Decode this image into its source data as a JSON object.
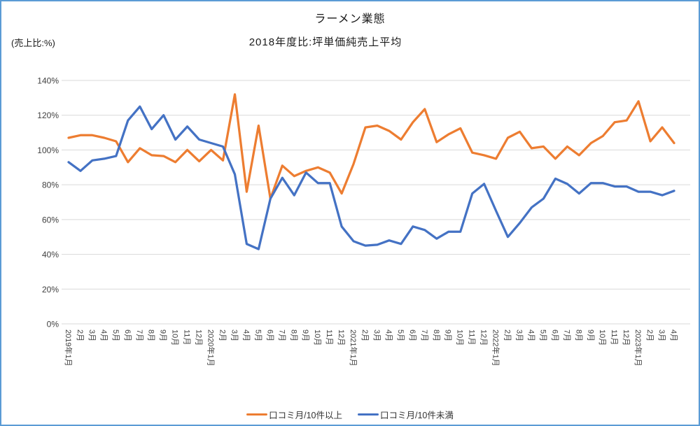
{
  "frame": {
    "border_color": "#5B9BD5",
    "background": "#FFFFFF"
  },
  "chart_data": {
    "type": "line",
    "title": "ラーメン業態",
    "subtitle": "2018年度比:坪単価純売上平均",
    "y_unit_label": "(売上比:%)",
    "xlabel": "",
    "ylabel": "売上比",
    "ylim": [
      0,
      140
    ],
    "grid": true,
    "legend_position": "bottom",
    "y_ticks": [
      "140%",
      "120%",
      "100%",
      "80%",
      "60%",
      "40%",
      "20%",
      "0%"
    ],
    "categories": [
      "2019年1月",
      "2月",
      "3月",
      "4月",
      "5月",
      "6月",
      "7月",
      "8月",
      "9月",
      "10月",
      "11月",
      "12月",
      "2020年1月",
      "2月",
      "3月",
      "4月",
      "5月",
      "6月",
      "7月",
      "8月",
      "9月",
      "10月",
      "11月",
      "12月",
      "2021年1月",
      "2月",
      "3月",
      "4月",
      "5月",
      "6月",
      "7月",
      "8月",
      "9月",
      "10月",
      "11月",
      "12月",
      "2022年1月",
      "2月",
      "3月",
      "4月",
      "5月",
      "6月",
      "7月",
      "8月",
      "9月",
      "10月",
      "11月",
      "12月",
      "2023年1月",
      "2月",
      "3月",
      "4月"
    ],
    "series": [
      {
        "name": "口コミ月/10件以上",
        "color": "#ED7D31",
        "values": [
          107,
          108.5,
          108.5,
          107,
          105,
          93,
          101,
          97,
          96.5,
          93,
          100,
          93.5,
          100,
          94,
          132,
          76,
          114,
          72,
          91,
          85,
          88,
          90,
          87,
          75,
          92,
          113,
          114,
          111,
          106,
          116,
          123.5,
          104.5,
          109,
          112.5,
          98.5,
          97,
          95,
          107,
          110.5,
          101,
          102,
          95,
          102,
          97,
          104,
          108,
          116,
          117,
          128,
          105,
          113,
          104
        ]
      },
      {
        "name": "口コミ月/10件未満",
        "color": "#4472C4",
        "values": [
          93,
          88,
          94,
          95,
          96.5,
          117,
          125,
          112,
          120,
          106,
          113.5,
          106,
          104,
          102,
          86,
          46,
          43,
          72,
          84,
          74,
          87,
          81,
          81,
          56,
          47.5,
          45,
          45.5,
          48,
          46,
          56,
          54,
          49,
          53,
          53,
          75,
          80.5,
          65,
          50,
          58,
          67,
          72,
          83.5,
          80.5,
          75,
          81,
          81,
          79,
          79,
          76,
          76,
          74,
          76.5
        ]
      }
    ]
  }
}
